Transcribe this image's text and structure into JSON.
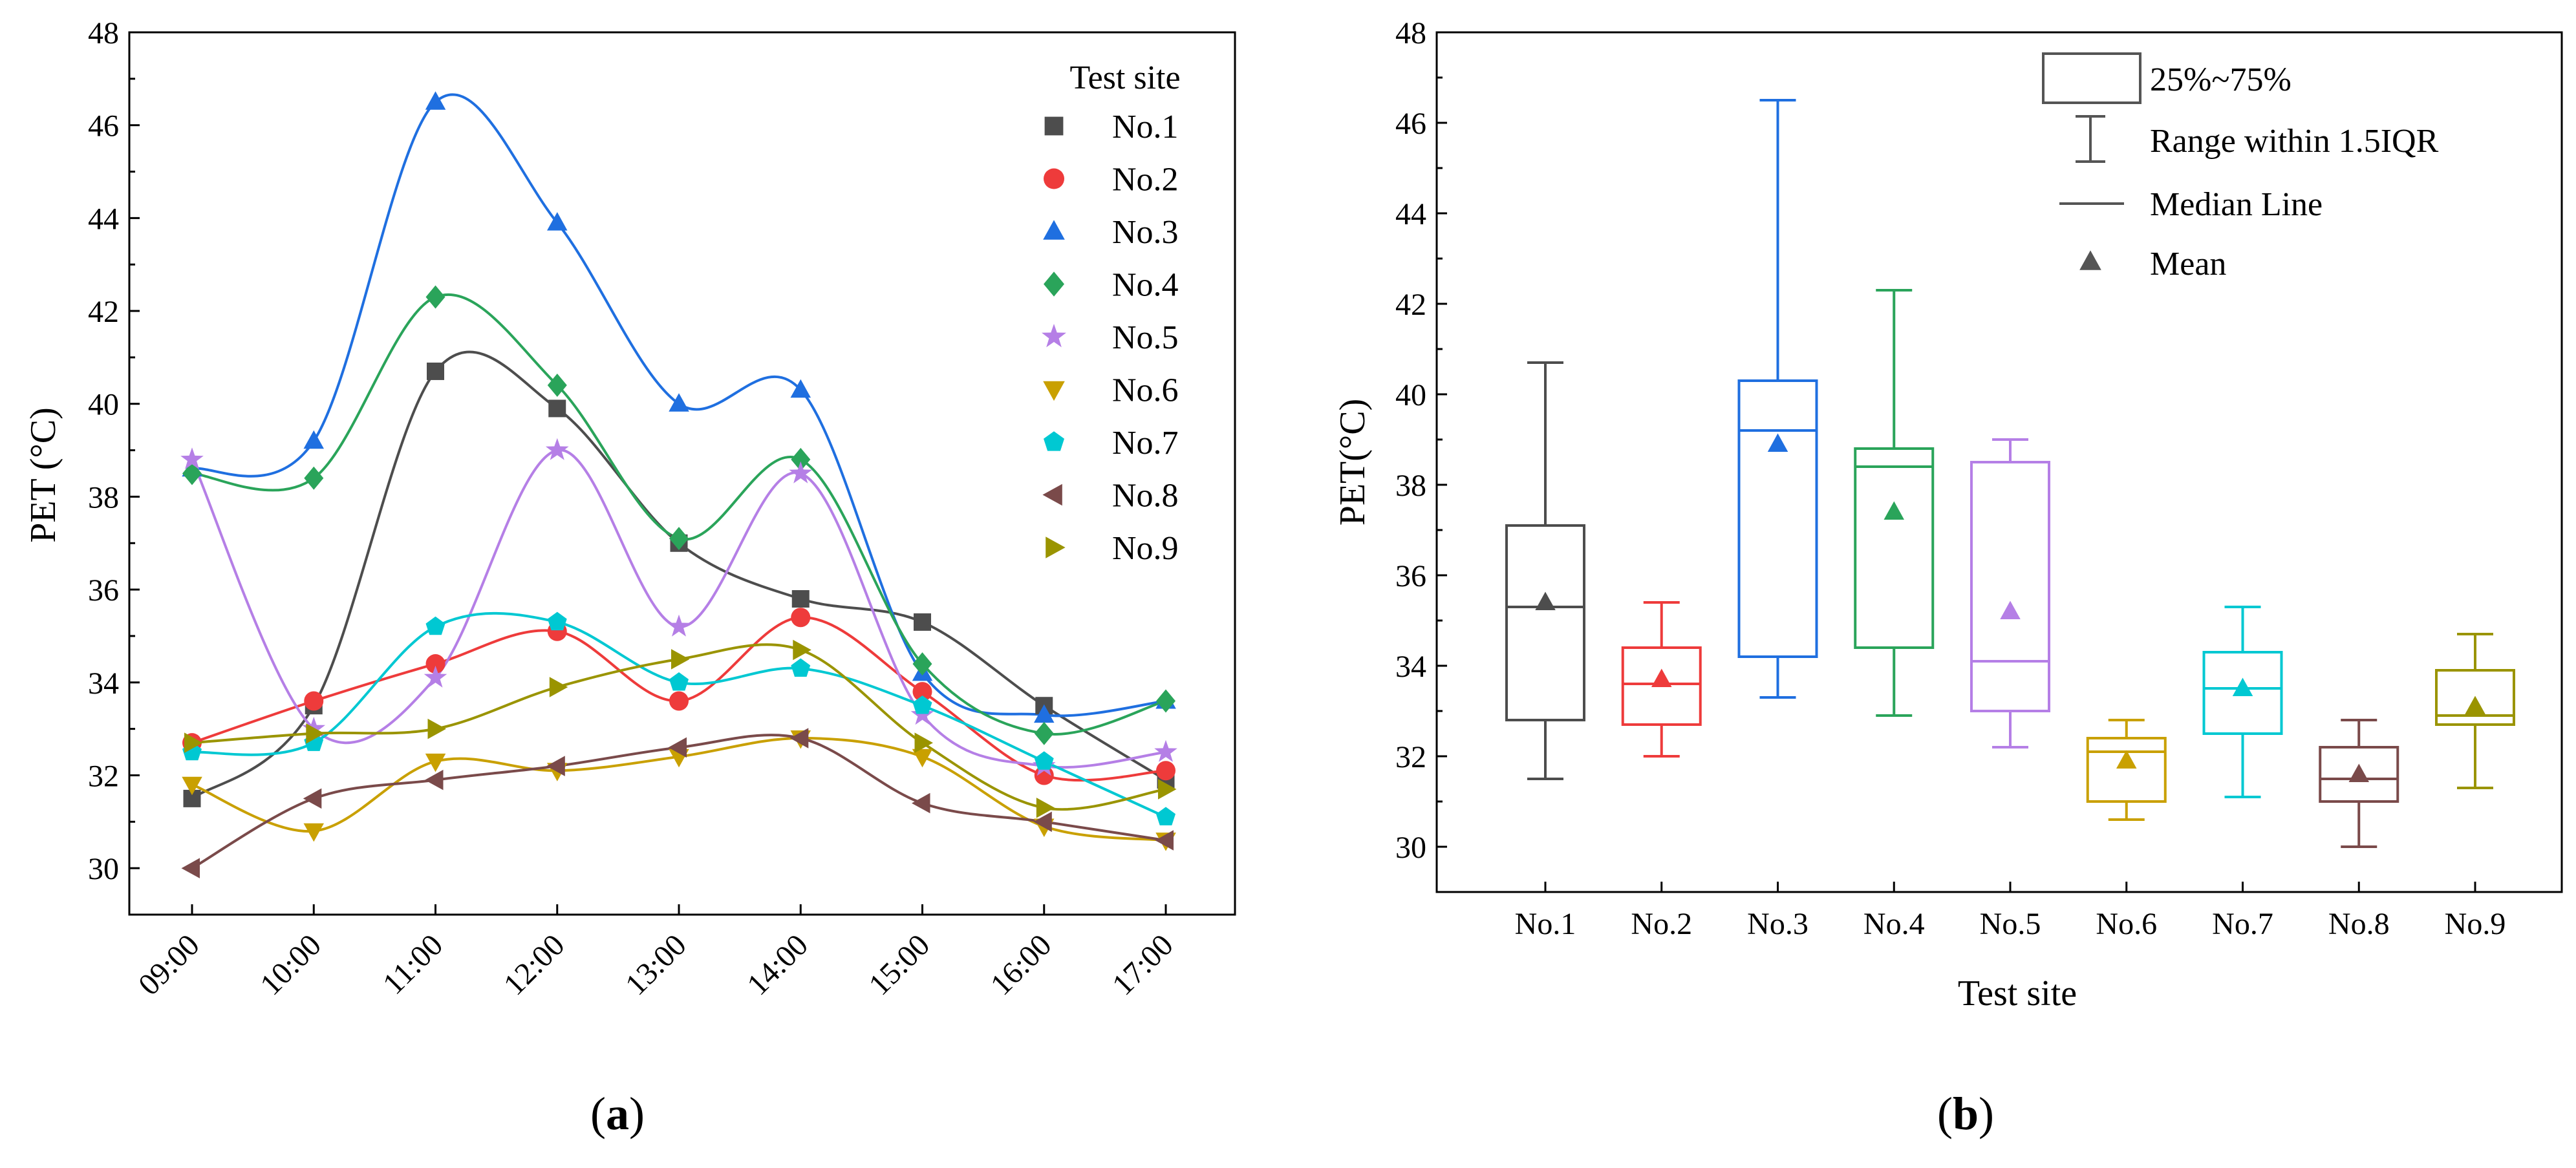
{
  "chart_data": [
    {
      "type": "line",
      "panel_label": "(a)",
      "panel_label_letter": "a",
      "ylabel": "PET (°C)",
      "xlabel": "",
      "ylim": [
        29,
        48
      ],
      "yticks": [
        30,
        32,
        34,
        36,
        38,
        40,
        42,
        44,
        46,
        48
      ],
      "categories": [
        "09:00",
        "10:00",
        "11:00",
        "12:00",
        "13:00",
        "14:00",
        "15:00",
        "16:00",
        "17:00"
      ],
      "legend_title": "Test site",
      "legend_position": "top-right",
      "grid": false,
      "series": [
        {
          "name": "No.1",
          "color": "#4d4d4d",
          "marker": "square",
          "values": [
            31.5,
            33.5,
            40.7,
            39.9,
            37.0,
            35.8,
            35.3,
            33.5,
            31.9
          ]
        },
        {
          "name": "No.2",
          "color": "#ee3b3b",
          "marker": "circle",
          "values": [
            32.7,
            33.6,
            34.4,
            35.1,
            33.6,
            35.4,
            33.8,
            32.0,
            32.1
          ]
        },
        {
          "name": "No.3",
          "color": "#1f6fe0",
          "marker": "triangle-up",
          "values": [
            38.6,
            39.2,
            46.5,
            43.9,
            40.0,
            40.3,
            34.2,
            33.3,
            33.6
          ]
        },
        {
          "name": "No.4",
          "color": "#2aa45a",
          "marker": "diamond",
          "values": [
            38.5,
            38.4,
            42.3,
            40.4,
            37.1,
            38.8,
            34.4,
            32.9,
            33.6
          ]
        },
        {
          "name": "No.5",
          "color": "#b57fe6",
          "marker": "star",
          "values": [
            38.8,
            33.0,
            34.1,
            39.0,
            35.2,
            38.5,
            33.3,
            32.2,
            32.5
          ]
        },
        {
          "name": "No.6",
          "color": "#c9a000",
          "marker": "triangle-down",
          "values": [
            31.8,
            30.8,
            32.3,
            32.1,
            32.4,
            32.8,
            32.4,
            30.9,
            30.6
          ]
        },
        {
          "name": "No.7",
          "color": "#00c8d2",
          "marker": "pentagon",
          "values": [
            32.5,
            32.7,
            35.2,
            35.3,
            34.0,
            34.3,
            33.5,
            32.3,
            31.1
          ]
        },
        {
          "name": "No.8",
          "color": "#7a4a4a",
          "marker": "triangle-left",
          "values": [
            30.0,
            31.5,
            31.9,
            32.2,
            32.6,
            32.8,
            31.4,
            31.0,
            30.6
          ]
        },
        {
          "name": "No.9",
          "color": "#9a9400",
          "marker": "triangle-right",
          "values": [
            32.7,
            32.9,
            33.0,
            33.9,
            34.5,
            34.7,
            32.7,
            31.3,
            31.7
          ]
        }
      ]
    },
    {
      "type": "box",
      "panel_label": "(b)",
      "panel_label_letter": "b",
      "xlabel": "Test site",
      "ylabel": "PET(°C)",
      "ylim": [
        29,
        48
      ],
      "yticks": [
        30,
        32,
        34,
        36,
        38,
        40,
        42,
        44,
        46,
        48
      ],
      "categories": [
        "No.1",
        "No.2",
        "No.3",
        "No.4",
        "No.5",
        "No.6",
        "No.7",
        "No.8",
        "No.9"
      ],
      "legend_position": "top-right",
      "legend": {
        "box_label": "25%~75%",
        "whisker_label": "Range within 1.5IQR",
        "median_label": "Median Line",
        "mean_label": "Mean"
      },
      "grid": false,
      "boxes": [
        {
          "name": "No.1",
          "color": "#4d4d4d",
          "min": 31.5,
          "q1": 32.8,
          "median": 35.3,
          "q3": 37.1,
          "max": 40.7,
          "mean": 35.4
        },
        {
          "name": "No.2",
          "color": "#ee3b3b",
          "min": 32.0,
          "q1": 32.7,
          "median": 33.6,
          "q3": 34.4,
          "max": 35.4,
          "mean": 33.7
        },
        {
          "name": "No.3",
          "color": "#1f6fe0",
          "min": 33.3,
          "q1": 34.2,
          "median": 39.2,
          "q3": 40.3,
          "max": 46.5,
          "mean": 38.9
        },
        {
          "name": "No.4",
          "color": "#2aa45a",
          "min": 32.9,
          "q1": 34.4,
          "median": 38.4,
          "q3": 38.8,
          "max": 42.3,
          "mean": 37.4
        },
        {
          "name": "No.5",
          "color": "#b57fe6",
          "min": 32.2,
          "q1": 33.0,
          "median": 34.1,
          "q3": 38.5,
          "max": 39.0,
          "mean": 35.2
        },
        {
          "name": "No.6",
          "color": "#c9a000",
          "min": 30.6,
          "q1": 31.0,
          "median": 32.1,
          "q3": 32.4,
          "max": 32.8,
          "mean": 31.9
        },
        {
          "name": "No.7",
          "color": "#00c8d2",
          "min": 31.1,
          "q1": 32.5,
          "median": 33.5,
          "q3": 34.3,
          "max": 35.3,
          "mean": 33.5
        },
        {
          "name": "No.8",
          "color": "#7a4a4a",
          "min": 30.0,
          "q1": 31.0,
          "median": 31.5,
          "q3": 32.2,
          "max": 32.8,
          "mean": 31.6
        },
        {
          "name": "No.9",
          "color": "#9a9400",
          "min": 31.3,
          "q1": 32.7,
          "median": 32.9,
          "q3": 33.9,
          "max": 34.7,
          "mean": 33.1
        }
      ]
    }
  ]
}
